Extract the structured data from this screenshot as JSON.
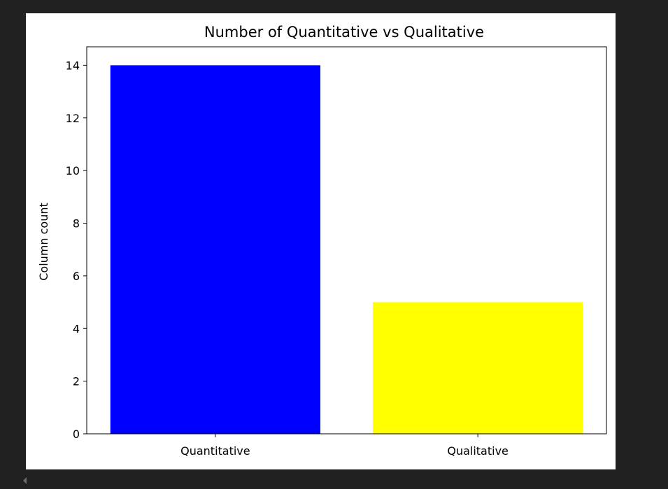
{
  "chart_data": {
    "type": "bar",
    "title": "Number of Quantitative vs Qualitative",
    "xlabel": "",
    "ylabel": "Column count",
    "categories": [
      "Quantitative",
      "Qualitative"
    ],
    "values": [
      14,
      5
    ],
    "colors": [
      "#0000ff",
      "#ffff00"
    ],
    "ylim": [
      0,
      14.7
    ],
    "yticks": [
      0,
      2,
      4,
      6,
      8,
      10,
      12,
      14
    ],
    "grid": false,
    "legend": "none"
  },
  "colors": {
    "page_background": "#212121",
    "figure_background": "#ffffff",
    "axis": "#000000"
  },
  "icons": {
    "scroll_left": "scroll-left-arrow-icon"
  }
}
